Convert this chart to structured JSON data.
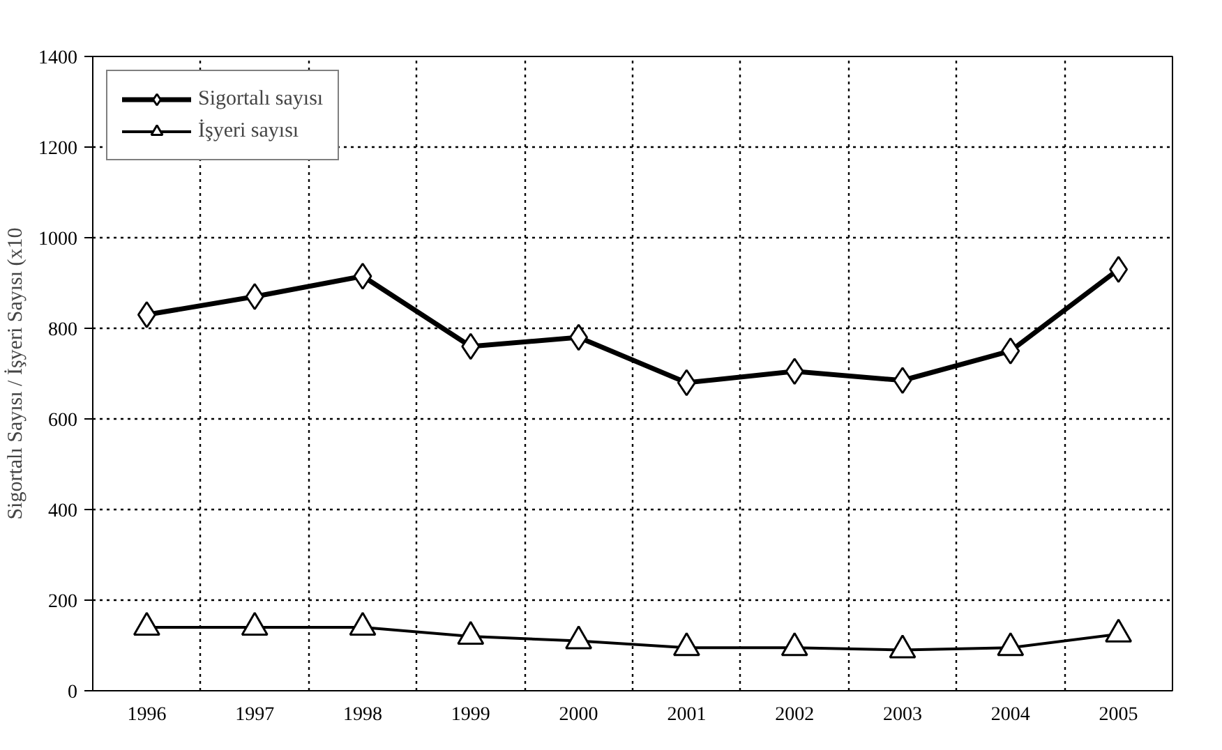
{
  "chart_data": {
    "type": "line",
    "ylabel": "Sigortalı Sayısı / İşyeri Sayısı (x10",
    "categories": [
      "1996",
      "1997",
      "1998",
      "1999",
      "2000",
      "2001",
      "2002",
      "2003",
      "2004",
      "2005"
    ],
    "series": [
      {
        "name": "Sigortalı sayısı",
        "color": "#000000",
        "marker": "diamond",
        "values": [
          830,
          870,
          915,
          760,
          780,
          680,
          705,
          685,
          750,
          930
        ]
      },
      {
        "name": "İşyeri sayısı",
        "color": "#000000",
        "marker": "triangle",
        "values": [
          140,
          140,
          140,
          120,
          110,
          95,
          95,
          90,
          95,
          125
        ]
      }
    ],
    "ylim": [
      0,
      1400
    ],
    "yticks": [
      0,
      200,
      400,
      600,
      800,
      1000,
      1200,
      1400
    ],
    "grid": true,
    "legend": "top left",
    "line_style": "solid"
  }
}
